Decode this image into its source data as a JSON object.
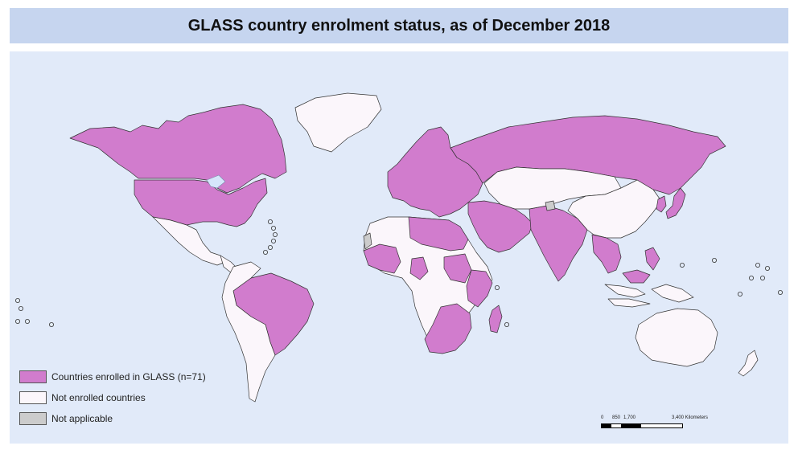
{
  "title": "GLASS country enrolment status, as of December 2018",
  "colors": {
    "enrolled": "#d17ccd",
    "not_enrolled": "#fbf6fb",
    "not_applicable": "#cccccc",
    "ocean": "#e1eaf9",
    "title_bar": "#c6d5ef",
    "border": "#333333",
    "lakes": "#d6e6fb"
  },
  "legend": [
    {
      "label": "Countries enrolled in GLASS (n=71)",
      "status": "enrolled"
    },
    {
      "label": "Not enrolled countries",
      "status": "not_enrolled"
    },
    {
      "label": "Not applicable",
      "status": "not_applicable"
    }
  ],
  "scale": {
    "labels": [
      "0",
      "850",
      "1,700",
      "3,400 Kilometers"
    ]
  },
  "regions": [
    {
      "name": "Canada",
      "status": "enrolled"
    },
    {
      "name": "Greenland",
      "status": "not_enrolled"
    },
    {
      "name": "United States",
      "status": "enrolled"
    },
    {
      "name": "Mexico",
      "status": "not_enrolled"
    },
    {
      "name": "Central America",
      "status": "not_enrolled"
    },
    {
      "name": "Brazil",
      "status": "enrolled"
    },
    {
      "name": "Other South America",
      "status": "not_enrolled"
    },
    {
      "name": "Europe (enrolled)",
      "status": "enrolled"
    },
    {
      "name": "Russia",
      "status": "enrolled"
    },
    {
      "name": "Middle East (enrolled)",
      "status": "enrolled"
    },
    {
      "name": "South Asia",
      "status": "enrolled"
    },
    {
      "name": "Central Asia / Mongolia",
      "status": "not_enrolled"
    },
    {
      "name": "China",
      "status": "not_enrolled"
    },
    {
      "name": "Japan",
      "status": "enrolled"
    },
    {
      "name": "Korea",
      "status": "enrolled"
    },
    {
      "name": "Southeast Asia (enrolled)",
      "status": "enrolled"
    },
    {
      "name": "Africa (not enrolled)",
      "status": "not_enrolled"
    },
    {
      "name": "North Africa (enrolled)",
      "status": "enrolled"
    },
    {
      "name": "Sahel / West Africa (enrolled)",
      "status": "enrolled"
    },
    {
      "name": "East Africa (enrolled)",
      "status": "enrolled"
    },
    {
      "name": "Southern Africa (enrolled)",
      "status": "enrolled"
    },
    {
      "name": "Madagascar",
      "status": "enrolled"
    },
    {
      "name": "Australia",
      "status": "not_enrolled"
    },
    {
      "name": "New Zealand",
      "status": "not_enrolled"
    },
    {
      "name": "Indonesia / PNG",
      "status": "not_enrolled"
    },
    {
      "name": "Western Sahara",
      "status": "not_applicable"
    },
    {
      "name": "Kashmir",
      "status": "not_applicable"
    }
  ]
}
